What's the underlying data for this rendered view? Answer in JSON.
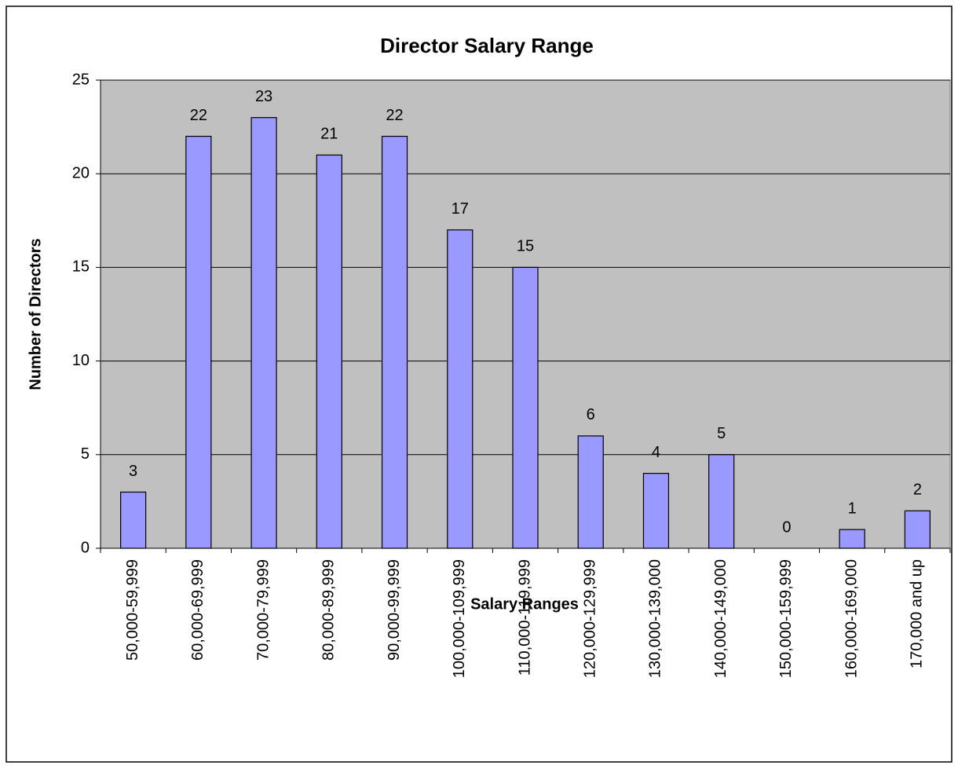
{
  "chart_data": {
    "type": "bar",
    "title": "Director Salary Range",
    "x_label": "Salary Ranges",
    "y_label": "Number of Directors",
    "categories": [
      "50,000-59,999",
      "60,000-69,999",
      "70,000-79,999",
      "80,000-89,999",
      "90,000-99,999",
      "100,000-109,999",
      "110,000-119,999",
      "120,000-129,999",
      "130,000-139,000",
      "140,000-149,000",
      "150,000-159,999",
      "160,000-169,000",
      "170,000 and up"
    ],
    "values": [
      3,
      22,
      23,
      21,
      22,
      17,
      15,
      6,
      4,
      5,
      0,
      1,
      2
    ],
    "color": "#9999ff",
    "plot_background": "#c0c0c0",
    "ylim": [
      0,
      25
    ],
    "yticks": [
      0,
      5,
      10,
      15,
      20,
      25
    ],
    "grid": true
  }
}
